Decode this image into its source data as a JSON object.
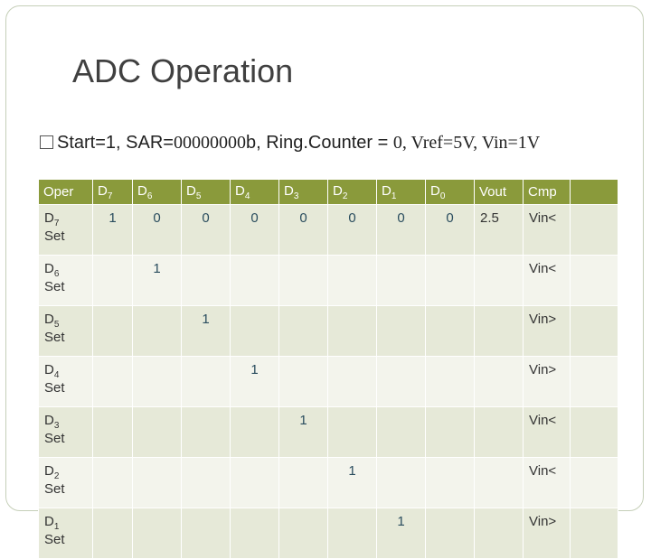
{
  "title": "ADC Operation",
  "bullet": {
    "segments": [
      {
        "text": "Start=1, SAR=",
        "font": "sans"
      },
      {
        "text": "00000000",
        "font": "serif"
      },
      {
        "text": "b, Ring.Counter = ",
        "font": "sans"
      },
      {
        "text": "0, Vref=5V, Vin=1V",
        "font": "serif"
      }
    ]
  },
  "table": {
    "header": [
      "Oper",
      {
        "letter": "D",
        "sub": "7"
      },
      {
        "letter": "D",
        "sub": "6"
      },
      {
        "letter": "D",
        "sub": "5"
      },
      {
        "letter": "D",
        "sub": "4"
      },
      {
        "letter": "D",
        "sub": "3"
      },
      {
        "letter": "D",
        "sub": "2"
      },
      {
        "letter": "D",
        "sub": "1"
      },
      {
        "letter": "D",
        "sub": "0"
      },
      "Vout",
      "Cmp",
      null
    ],
    "rows": [
      {
        "label": {
          "letter": "D",
          "sub": "7",
          "word": "Set"
        },
        "cells": [
          "1",
          "0",
          "0",
          "0",
          "0",
          "0",
          "0",
          "0",
          "2.5",
          "Vin<",
          null
        ]
      },
      {
        "label": {
          "letter": "D",
          "sub": "6",
          "word": "Set"
        },
        "cells": [
          null,
          "1",
          null,
          null,
          null,
          null,
          null,
          null,
          null,
          "Vin<",
          null
        ]
      },
      {
        "label": {
          "letter": "D",
          "sub": "5",
          "word": "Set"
        },
        "cells": [
          null,
          null,
          "1",
          null,
          null,
          null,
          null,
          null,
          null,
          "Vin>",
          null
        ]
      },
      {
        "label": {
          "letter": "D",
          "sub": "4",
          "word": "Set"
        },
        "cells": [
          null,
          null,
          null,
          "1",
          null,
          null,
          null,
          null,
          null,
          "Vin>",
          null
        ]
      },
      {
        "label": {
          "letter": "D",
          "sub": "3",
          "word": "Set"
        },
        "cells": [
          null,
          null,
          null,
          null,
          "1",
          null,
          null,
          null,
          null,
          "Vin<",
          null
        ]
      },
      {
        "label": {
          "letter": "D",
          "sub": "2",
          "word": "Set"
        },
        "cells": [
          null,
          null,
          null,
          null,
          null,
          "1",
          null,
          null,
          null,
          "Vin<",
          null
        ]
      },
      {
        "label": {
          "letter": "D",
          "sub": "1",
          "word": "Set"
        },
        "cells": [
          null,
          null,
          null,
          null,
          null,
          null,
          "1",
          null,
          null,
          "Vin>",
          null
        ]
      }
    ]
  }
}
